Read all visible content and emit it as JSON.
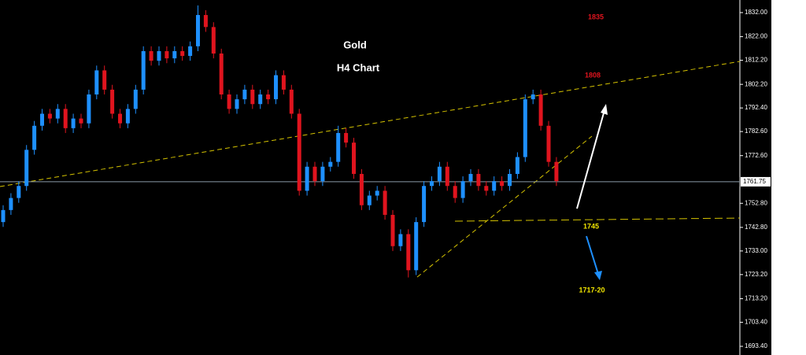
{
  "chart_data": {
    "type": "candlestick",
    "title": "Gold",
    "subtitle": "H4 Chart",
    "up_color": "#1e90ff",
    "down_color": "#e0141e",
    "ylim": [
      1689.8,
      1837.23
    ],
    "yticks": [
      {
        "value": 1832,
        "label": "1832.00"
      },
      {
        "value": 1822,
        "label": "1822.00"
      },
      {
        "value": 1812.2,
        "label": "1812.20"
      },
      {
        "value": 1802.2,
        "label": "1802.20"
      },
      {
        "value": 1792.4,
        "label": "1792.40"
      },
      {
        "value": 1782.6,
        "label": "1782.60"
      },
      {
        "value": 1772.6,
        "label": "1772.60"
      },
      {
        "value": 1752.8,
        "label": "1752.80"
      },
      {
        "value": 1742.8,
        "label": "1742.80"
      },
      {
        "value": 1733,
        "label": "1733.00"
      },
      {
        "value": 1723.2,
        "label": "1723.20"
      },
      {
        "value": 1713.2,
        "label": "1713.20"
      },
      {
        "value": 1703.4,
        "label": "1703.40"
      },
      {
        "value": 1693.4,
        "label": "1693.40"
      }
    ],
    "current_price": 1761.75,
    "annotations": [
      "1835",
      "1808",
      "1745",
      "1717-20"
    ],
    "open": [
      1745,
      1750,
      1755,
      1760,
      1775,
      1785,
      1790,
      1788,
      1792,
      1784,
      1788,
      1786,
      1798,
      1808,
      1800,
      1790,
      1786,
      1792,
      1800,
      1816,
      1812,
      1816,
      1813,
      1816,
      1814,
      1818,
      1831,
      1826,
      1815,
      1798,
      1792,
      1796,
      1800,
      1794,
      1798,
      1796,
      1806,
      1800,
      1790,
      1758,
      1768,
      1762,
      1768,
      1770,
      1782,
      1778,
      1765,
      1752,
      1756,
      1758,
      1748,
      1735,
      1740,
      1725,
      1745,
      1760,
      1762,
      1768,
      1760,
      1755,
      1762,
      1765,
      1760,
      1758,
      1762,
      1760,
      1765,
      1772,
      1796,
      1798,
      1785,
      1770
    ],
    "high": [
      1752,
      1757,
      1762,
      1777,
      1787,
      1792,
      1792,
      1794,
      1794,
      1790,
      1790,
      1800,
      1810,
      1810,
      1802,
      1792,
      1794,
      1802,
      1818,
      1818,
      1818,
      1818,
      1818,
      1818,
      1820,
      1835,
      1833,
      1828,
      1817,
      1800,
      1798,
      1802,
      1802,
      1800,
      1800,
      1808,
      1808,
      1802,
      1792,
      1770,
      1770,
      1770,
      1772,
      1785,
      1784,
      1780,
      1767,
      1758,
      1760,
      1760,
      1750,
      1742,
      1742,
      1747,
      1762,
      1764,
      1770,
      1770,
      1762,
      1764,
      1767,
      1767,
      1762,
      1764,
      1764,
      1767,
      1774,
      1798,
      1800,
      1800,
      1787,
      1772
    ],
    "low": [
      1743,
      1748,
      1753,
      1758,
      1773,
      1783,
      1786,
      1786,
      1782,
      1782,
      1784,
      1784,
      1796,
      1798,
      1788,
      1784,
      1784,
      1790,
      1798,
      1810,
      1810,
      1811,
      1811,
      1812,
      1812,
      1816,
      1824,
      1813,
      1796,
      1790,
      1790,
      1794,
      1792,
      1792,
      1794,
      1794,
      1798,
      1788,
      1756,
      1756,
      1760,
      1760,
      1766,
      1768,
      1776,
      1763,
      1750,
      1750,
      1754,
      1746,
      1733,
      1733,
      1722,
      1723,
      1743,
      1758,
      1760,
      1758,
      1753,
      1753,
      1760,
      1758,
      1756,
      1756,
      1758,
      1758,
      1763,
      1770,
      1794,
      1783,
      1768,
      1760
    ],
    "close": [
      1750,
      1755,
      1760,
      1775,
      1785,
      1790,
      1788,
      1792,
      1784,
      1788,
      1786,
      1798,
      1808,
      1800,
      1790,
      1786,
      1792,
      1800,
      1816,
      1812,
      1816,
      1813,
      1816,
      1814,
      1818,
      1831,
      1826,
      1815,
      1798,
      1792,
      1796,
      1800,
      1794,
      1798,
      1796,
      1806,
      1800,
      1790,
      1758,
      1768,
      1762,
      1768,
      1770,
      1782,
      1778,
      1765,
      1752,
      1756,
      1758,
      1748,
      1735,
      1740,
      1725,
      1745,
      1760,
      1762,
      1768,
      1760,
      1755,
      1762,
      1765,
      1760,
      1758,
      1762,
      1760,
      1765,
      1772,
      1796,
      1798,
      1785,
      1770,
      1762
    ]
  }
}
